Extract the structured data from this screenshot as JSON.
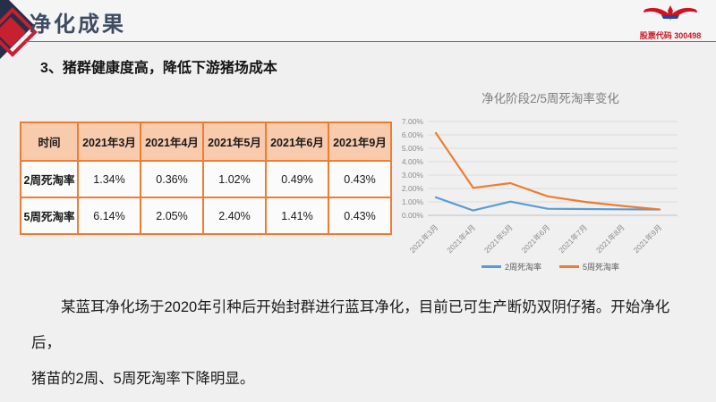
{
  "header": {
    "title": "净化成果",
    "stock_code": "股票代码 300498",
    "logo": "eagle-wings-logo"
  },
  "subtitle": "3、猪群健康度高，降低下游猪场成本",
  "table": {
    "headers": [
      "时间",
      "2021年3月",
      "2021年4月",
      "2021年5月",
      "2021年6月",
      "2021年9月"
    ],
    "rows": [
      {
        "label": "2周死淘率",
        "values": [
          "1.34%",
          "0.36%",
          "1.02%",
          "0.49%",
          "0.43%"
        ]
      },
      {
        "label": "5周死淘率",
        "values": [
          "6.14%",
          "2.05%",
          "2.40%",
          "1.41%",
          "0.43%"
        ]
      }
    ]
  },
  "chart_data": {
    "type": "line",
    "title": "净化阶段2/5周死淘率变化",
    "categories": [
      "2021年3月",
      "2021年4月",
      "2021年5月",
      "2021年6月",
      "2021年7月",
      "2021年8月",
      "2021年9月"
    ],
    "series": [
      {
        "name": "2周死淘率",
        "color": "#5b9bd5",
        "values": [
          1.34,
          0.36,
          1.02,
          0.49,
          0.47,
          0.45,
          0.43
        ]
      },
      {
        "name": "5周死淘率",
        "color": "#ed7d31",
        "values": [
          6.14,
          2.05,
          2.4,
          1.41,
          1.0,
          0.7,
          0.43
        ]
      }
    ],
    "ylim": [
      0,
      7
    ],
    "ytick_step": 1,
    "ytick_format": "percent2",
    "grid": true,
    "legend_position": "bottom"
  },
  "body": {
    "line1": "某蓝耳净化场于2020年引种后开始封群进行蓝耳净化，目前已可生产断奶双阴仔猪。开始净化后，",
    "line2": "猪苗的2周、5周死淘率下降明显。"
  },
  "colors": {
    "accent_red": "#c8202f",
    "accent_navy": "#272e4a",
    "header_rule": "#aa5a66",
    "title_text": "#3e4c63",
    "stock_code_red": "#d0121f",
    "table_border": "#ed7d31",
    "table_header_bg": "#f8cbad",
    "series_blue": "#5b9bd5",
    "series_orange": "#ed7d31",
    "slide_bg": "#f0f0f1"
  }
}
